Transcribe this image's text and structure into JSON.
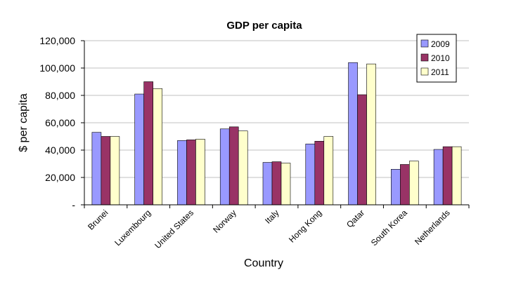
{
  "chart_data": {
    "type": "bar",
    "title": "GDP per capita",
    "xlabel": "Country",
    "ylabel": "$ per capita",
    "ylim": [
      0,
      120000
    ],
    "yticks": [
      0,
      20000,
      40000,
      60000,
      80000,
      100000,
      120000
    ],
    "ytick_labels": [
      "-",
      "20,000",
      "40,000",
      "60,000",
      "80,000",
      "100,000",
      "120,000"
    ],
    "grid": true,
    "legend_position": "top-right",
    "categories": [
      "Brunei",
      "Luxembourg",
      "United States",
      "Norway",
      "Italy",
      "Hong Kong",
      "Qatar",
      "South Korea",
      "Netherlands"
    ],
    "series": [
      {
        "name": "2009",
        "color": "#9999ff",
        "values": [
          53000,
          81000,
          47000,
          55500,
          31000,
          44500,
          104000,
          26000,
          40500
        ]
      },
      {
        "name": "2010",
        "color": "#993366",
        "values": [
          50000,
          90000,
          47500,
          57000,
          31500,
          46500,
          80500,
          29500,
          42500
        ]
      },
      {
        "name": "2011",
        "color": "#ffffcc",
        "values": [
          50000,
          85000,
          48000,
          54000,
          30500,
          50000,
          103000,
          32000,
          42500
        ]
      }
    ]
  }
}
